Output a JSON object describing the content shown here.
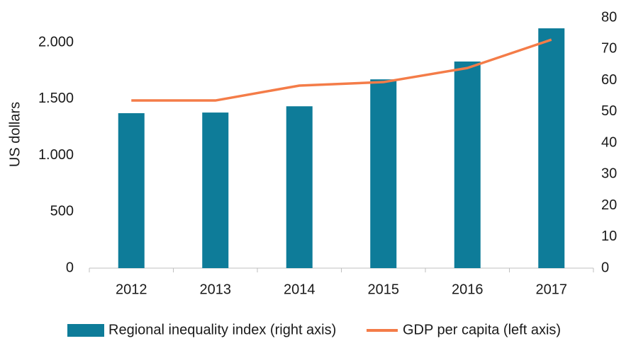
{
  "chart_data": {
    "type": "bar",
    "y_label": "US dollars",
    "categories": [
      "2012",
      "2013",
      "2014",
      "2015",
      "2016",
      "2017"
    ],
    "series": [
      {
        "name": "Regional inequality index (right axis)",
        "type": "bar",
        "axis": "y2",
        "color": "#0e7c99",
        "values": [
          49.5,
          49.7,
          51.7,
          60.3,
          66.0,
          76.6
        ]
      },
      {
        "name": "GDP per capita (left axis)",
        "type": "line",
        "color": "#f47c48",
        "values": [
          1486,
          1486,
          1618,
          1649,
          1774,
          2025
        ]
      }
    ],
    "ylim": [
      0,
      2220
    ],
    "yticks": [
      0,
      500,
      {
        "value": 1000,
        "label": "1.000"
      },
      {
        "value": 1500,
        "label": "1.500"
      },
      {
        "value": 2000,
        "label": "2.000"
      }
    ],
    "y2lim": [
      0,
      80
    ],
    "y2ticks": [
      0,
      10,
      20,
      30,
      40,
      50,
      60,
      70,
      80
    ],
    "grid": false,
    "legend": "bottom"
  }
}
